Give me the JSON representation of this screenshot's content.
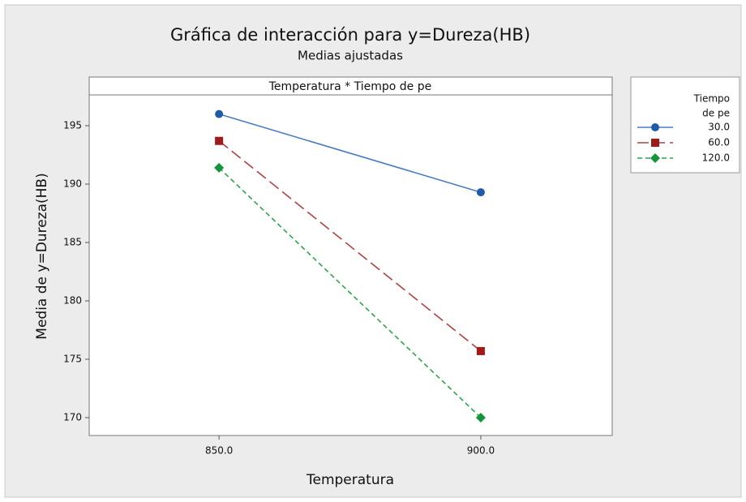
{
  "chart_data": {
    "type": "line",
    "title": "Gráfica de interacción para y=Dureza(HB)",
    "subtitle": "Medias ajustadas",
    "panel_label": "Temperatura * Tiempo de pe",
    "xlabel": "Temperatura",
    "ylabel": "Media de y=Dureza(HB)",
    "legend_title": [
      "Tiempo",
      "de pe"
    ],
    "x": [
      850,
      900
    ],
    "xlim": [
      825.2,
      925.1
    ],
    "xticks": [
      {
        "value": 850,
        "label": "850.0"
      },
      {
        "value": 900,
        "label": "900.0"
      }
    ],
    "ylim": [
      168.47,
      197.64
    ],
    "yticks": [
      170,
      175,
      180,
      185,
      190,
      195
    ],
    "series": [
      {
        "name": "30.0",
        "color": "#1f5ba8",
        "line_color": "#4a7cc0",
        "marker": "circle",
        "dash": "solid",
        "values": [
          196.0,
          189.3
        ]
      },
      {
        "name": "60.0",
        "color": "#a11a1a",
        "line_color": "#b04040",
        "marker": "square",
        "dash": "longdash",
        "values": [
          193.7,
          175.7
        ]
      },
      {
        "name": "120.0",
        "color": "#14953a",
        "line_color": "#2ea34e",
        "marker": "diamond",
        "dash": "dash",
        "values": [
          191.4,
          170.0
        ]
      }
    ]
  }
}
